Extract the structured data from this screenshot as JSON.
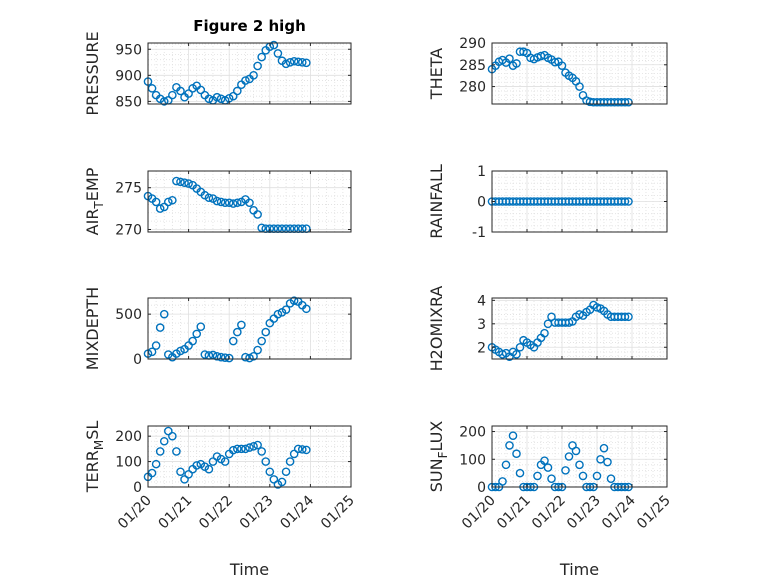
{
  "figure_title": "Figure 2 high",
  "x_axis": {
    "label": "Time",
    "ticks": [
      "01/20",
      "01/21",
      "01/22",
      "01/23",
      "01/24",
      "01/25"
    ],
    "lim": [
      0,
      5
    ]
  },
  "colors": {
    "marker": "#0072BD",
    "axis": "#262626",
    "grid": "#dfdfdf"
  },
  "chart_data": [
    {
      "type": "scatter",
      "title": "Figure 2 high",
      "ylabel": "PRESSURE",
      "ylim": [
        845,
        962
      ],
      "yticks": [
        850,
        900,
        950
      ],
      "grid": true,
      "x": [
        0,
        0.1,
        0.2,
        0.3,
        0.4,
        0.5,
        0.6,
        0.7,
        0.8,
        0.9,
        1,
        1.1,
        1.2,
        1.3,
        1.4,
        1.5,
        1.6,
        1.7,
        1.8,
        1.9,
        2,
        2.1,
        2.2,
        2.3,
        2.4,
        2.5,
        2.6,
        2.7,
        2.8,
        2.9,
        3,
        3.1,
        3.2,
        3.3,
        3.4,
        3.5,
        3.6,
        3.7,
        3.8,
        3.9
      ],
      "y": [
        888,
        875,
        862,
        855,
        850,
        852,
        862,
        877,
        870,
        858,
        865,
        875,
        880,
        872,
        862,
        855,
        852,
        858,
        855,
        852,
        856,
        860,
        870,
        882,
        890,
        893,
        900,
        918,
        935,
        948,
        955,
        958,
        942,
        928,
        922,
        925,
        927,
        926,
        925,
        924
      ]
    },
    {
      "type": "scatter",
      "ylabel": "THETA",
      "ylim": [
        276,
        290
      ],
      "yticks": [
        280,
        285,
        290
      ],
      "grid": true,
      "x": [
        0,
        0.1,
        0.2,
        0.3,
        0.4,
        0.5,
        0.6,
        0.7,
        0.8,
        0.9,
        1,
        1.1,
        1.2,
        1.3,
        1.4,
        1.5,
        1.6,
        1.7,
        1.8,
        1.9,
        2,
        2.1,
        2.2,
        2.3,
        2.4,
        2.5,
        2.6,
        2.7,
        2.8,
        2.9,
        3,
        3.1,
        3.2,
        3.3,
        3.4,
        3.5,
        3.6,
        3.7,
        3.8,
        3.9
      ],
      "y": [
        284,
        284.8,
        285.7,
        286.1,
        285.5,
        286.4,
        284.8,
        285.3,
        288,
        288,
        287.7,
        286.6,
        286.3,
        286.7,
        287,
        287.2,
        286.6,
        286.2,
        285.6,
        285.7,
        284.8,
        283.2,
        282.5,
        282,
        281.2,
        280,
        278,
        276.8,
        276.5,
        276.4,
        276.4,
        276.4,
        276.4,
        276.4,
        276.4,
        276.4,
        276.4,
        276.4,
        276.4,
        276.4
      ]
    },
    {
      "type": "scatter",
      "ylabel": "AIR_TEMP",
      "ylim": [
        269.7,
        277
      ],
      "yticks": [
        270,
        275
      ],
      "grid": true,
      "x": [
        0,
        0.1,
        0.2,
        0.3,
        0.4,
        0.5,
        0.6,
        0.7,
        0.8,
        0.9,
        1,
        1.1,
        1.2,
        1.3,
        1.4,
        1.5,
        1.6,
        1.7,
        1.8,
        1.9,
        2,
        2.1,
        2.2,
        2.3,
        2.4,
        2.5,
        2.6,
        2.7,
        2.8,
        2.9,
        3,
        3.1,
        3.2,
        3.3,
        3.4,
        3.5,
        3.6,
        3.7,
        3.8,
        3.9
      ],
      "y": [
        274,
        273.7,
        273.3,
        272.5,
        272.7,
        273.3,
        273.5,
        275.8,
        275.7,
        275.6,
        275.5,
        275.3,
        274.9,
        274.5,
        274.1,
        273.8,
        273.7,
        273.4,
        273.3,
        273.2,
        273.2,
        273.1,
        273.2,
        273.3,
        273.6,
        273.2,
        272.3,
        271.8,
        270.2,
        270.1,
        270.1,
        270.1,
        270.1,
        270.1,
        270.1,
        270.1,
        270.1,
        270.1,
        270.1,
        270.1
      ]
    },
    {
      "type": "scatter",
      "ylabel": "RAINFALL",
      "ylim": [
        -1,
        1
      ],
      "yticks": [
        -1,
        0,
        1
      ],
      "grid": true,
      "x": [
        0,
        0.1,
        0.2,
        0.3,
        0.4,
        0.5,
        0.6,
        0.7,
        0.8,
        0.9,
        1,
        1.1,
        1.2,
        1.3,
        1.4,
        1.5,
        1.6,
        1.7,
        1.8,
        1.9,
        2,
        2.1,
        2.2,
        2.3,
        2.4,
        2.5,
        2.6,
        2.7,
        2.8,
        2.9,
        3,
        3.1,
        3.2,
        3.3,
        3.4,
        3.5,
        3.6,
        3.7,
        3.8,
        3.9
      ],
      "y": [
        0,
        0,
        0,
        0,
        0,
        0,
        0,
        0,
        0,
        0,
        0,
        0,
        0,
        0,
        0,
        0,
        0,
        0,
        0,
        0,
        0,
        0,
        0,
        0,
        0,
        0,
        0,
        0,
        0,
        0,
        0,
        0,
        0,
        0,
        0,
        0,
        0,
        0,
        0,
        0
      ]
    },
    {
      "type": "scatter",
      "ylabel": "MIXDEPTH",
      "ylim": [
        0,
        680
      ],
      "yticks": [
        0,
        500
      ],
      "grid": true,
      "x": [
        0,
        0.1,
        0.2,
        0.3,
        0.4,
        0.5,
        0.6,
        0.7,
        0.8,
        0.9,
        1,
        1.1,
        1.2,
        1.3,
        1.4,
        1.5,
        1.6,
        1.7,
        1.8,
        1.9,
        2,
        2.1,
        2.2,
        2.3,
        2.4,
        2.5,
        2.6,
        2.7,
        2.8,
        2.9,
        3,
        3.1,
        3.2,
        3.3,
        3.4,
        3.5,
        3.6,
        3.7,
        3.8,
        3.9
      ],
      "y": [
        60,
        80,
        150,
        350,
        500,
        50,
        20,
        60,
        90,
        110,
        150,
        200,
        280,
        360,
        50,
        40,
        45,
        30,
        20,
        15,
        10,
        200,
        300,
        380,
        20,
        10,
        30,
        100,
        200,
        300,
        400,
        450,
        500,
        520,
        550,
        620,
        650,
        640,
        600,
        560
      ]
    },
    {
      "type": "scatter",
      "ylabel": "H2OMIXRA",
      "ylim": [
        1.5,
        4.1
      ],
      "yticks": [
        2,
        3,
        4
      ],
      "grid": true,
      "x": [
        0,
        0.1,
        0.2,
        0.3,
        0.4,
        0.5,
        0.6,
        0.7,
        0.8,
        0.9,
        1,
        1.1,
        1.2,
        1.3,
        1.4,
        1.5,
        1.6,
        1.7,
        1.8,
        1.9,
        2,
        2.1,
        2.2,
        2.3,
        2.4,
        2.5,
        2.6,
        2.7,
        2.8,
        2.9,
        3,
        3.1,
        3.2,
        3.3,
        3.4,
        3.5,
        3.6,
        3.7,
        3.8,
        3.9
      ],
      "y": [
        2,
        1.9,
        1.8,
        1.7,
        1.75,
        1.6,
        1.8,
        1.7,
        2,
        2.3,
        2.2,
        2.1,
        2,
        2.2,
        2.4,
        2.6,
        3,
        3.3,
        3.05,
        3.05,
        3.05,
        3.05,
        3.05,
        3.1,
        3.3,
        3.4,
        3.35,
        3.5,
        3.6,
        3.8,
        3.7,
        3.65,
        3.55,
        3.4,
        3.3,
        3.3,
        3.3,
        3.3,
        3.3,
        3.3
      ]
    },
    {
      "type": "scatter",
      "ylabel": "TERR_MSL",
      "ylim": [
        0,
        240
      ],
      "yticks": [
        0,
        100,
        200
      ],
      "grid": true,
      "x": [
        0,
        0.1,
        0.2,
        0.3,
        0.4,
        0.5,
        0.6,
        0.7,
        0.8,
        0.9,
        1,
        1.1,
        1.2,
        1.3,
        1.4,
        1.5,
        1.6,
        1.7,
        1.8,
        1.9,
        2,
        2.1,
        2.2,
        2.3,
        2.4,
        2.5,
        2.6,
        2.7,
        2.8,
        2.9,
        3,
        3.1,
        3.2,
        3.3,
        3.4,
        3.5,
        3.6,
        3.7,
        3.8,
        3.9
      ],
      "y": [
        40,
        55,
        90,
        140,
        180,
        220,
        200,
        140,
        60,
        30,
        50,
        70,
        85,
        90,
        80,
        70,
        100,
        120,
        110,
        100,
        130,
        145,
        150,
        150,
        150,
        155,
        160,
        165,
        140,
        100,
        60,
        30,
        10,
        20,
        60,
        100,
        130,
        150,
        148,
        146
      ]
    },
    {
      "type": "scatter",
      "ylabel": "SUN_FLUX",
      "ylim": [
        0,
        220
      ],
      "yticks": [
        0,
        100,
        200
      ],
      "grid": true,
      "x": [
        0,
        0.1,
        0.2,
        0.3,
        0.4,
        0.5,
        0.6,
        0.7,
        0.8,
        0.9,
        1,
        1.1,
        1.2,
        1.3,
        1.4,
        1.5,
        1.6,
        1.7,
        1.8,
        1.9,
        2,
        2.1,
        2.2,
        2.3,
        2.4,
        2.5,
        2.6,
        2.7,
        2.8,
        2.9,
        3,
        3.1,
        3.2,
        3.3,
        3.4,
        3.5,
        3.6,
        3.7,
        3.8,
        3.9
      ],
      "y": [
        0,
        0,
        0,
        20,
        80,
        150,
        185,
        120,
        50,
        0,
        0,
        0,
        0,
        40,
        80,
        95,
        70,
        30,
        0,
        0,
        0,
        60,
        110,
        150,
        130,
        80,
        40,
        0,
        0,
        0,
        40,
        100,
        140,
        90,
        30,
        0,
        0,
        0,
        0,
        0
      ]
    }
  ]
}
